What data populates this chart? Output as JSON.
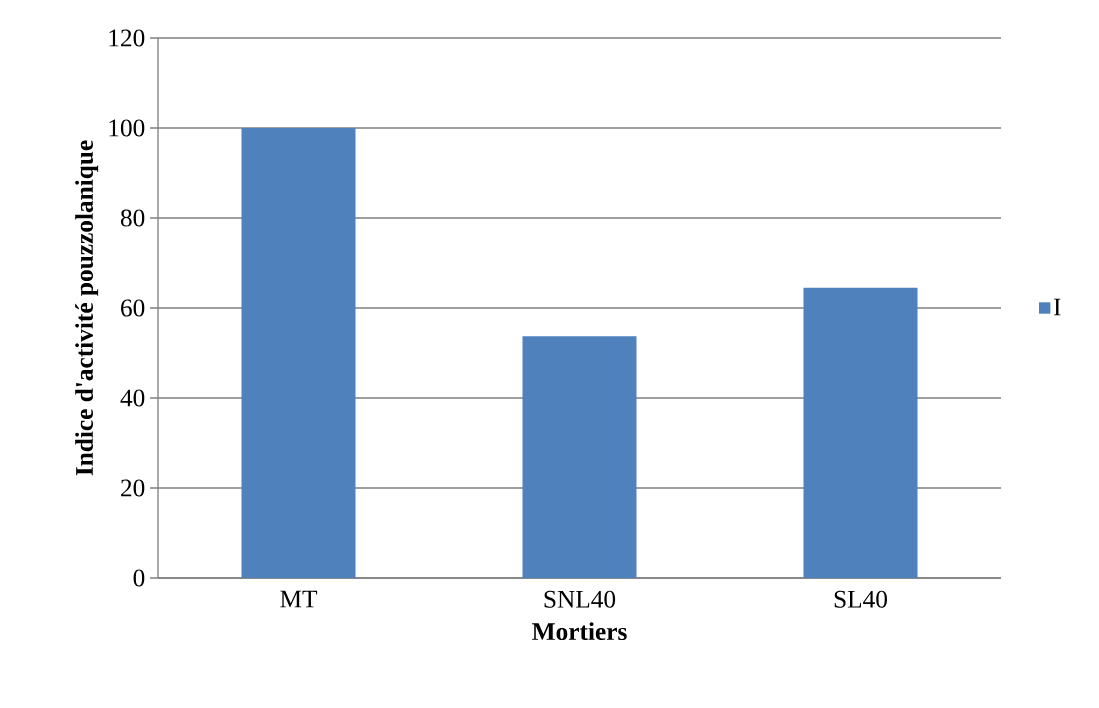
{
  "chart_data": {
    "type": "bar",
    "xlabel": "Mortiers",
    "ylabel": "Indice d'activité pouzzolanique",
    "categories": [
      "MT",
      "SNL40",
      "SL40"
    ],
    "series": [
      {
        "name": "I",
        "color": "#4f81bd",
        "values": [
          100,
          53.7,
          64.5
        ]
      }
    ],
    "ylim": [
      0,
      120
    ],
    "yticks": [
      0,
      20,
      40,
      60,
      80,
      100,
      120
    ],
    "grid": "y",
    "legend": "right"
  }
}
